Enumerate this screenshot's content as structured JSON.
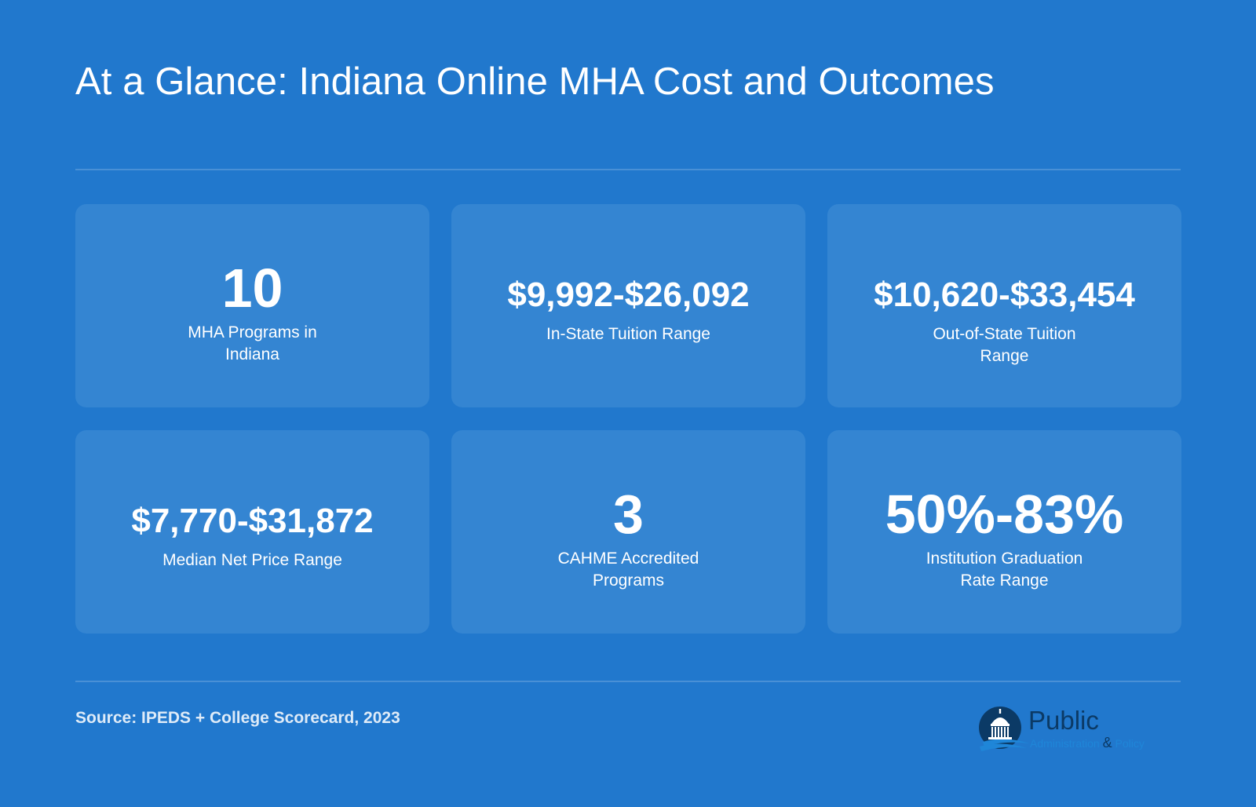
{
  "title": "At a Glance: Indiana Online MHA Cost and Outcomes",
  "stats": [
    {
      "value": "10",
      "label": "MHA Programs in Indiana"
    },
    {
      "value": "$9,992-$26,092",
      "label": "In-State Tuition Range"
    },
    {
      "value": "$10,620-$33,454",
      "label": "Out-of-State Tuition Range"
    },
    {
      "value": "$7,770-$31,872",
      "label": "Median Net Price Range"
    },
    {
      "value": "3",
      "label": "CAHME Accredited Programs"
    },
    {
      "value": "50%-83%",
      "label": "Institution Graduation Rate Range"
    }
  ],
  "source": "Source: IPEDS + College Scorecard, 2023",
  "logo": {
    "word": "Public",
    "sub_left": "Administration",
    "sub_amp": "&",
    "sub_right": "Policy",
    "icon": "capitol-dome-icon"
  },
  "colors": {
    "background": "#2178cd",
    "card": "#3485d2",
    "text": "#ffffff",
    "logo_dark": "#0b3a66",
    "logo_light": "#1f86d8"
  }
}
